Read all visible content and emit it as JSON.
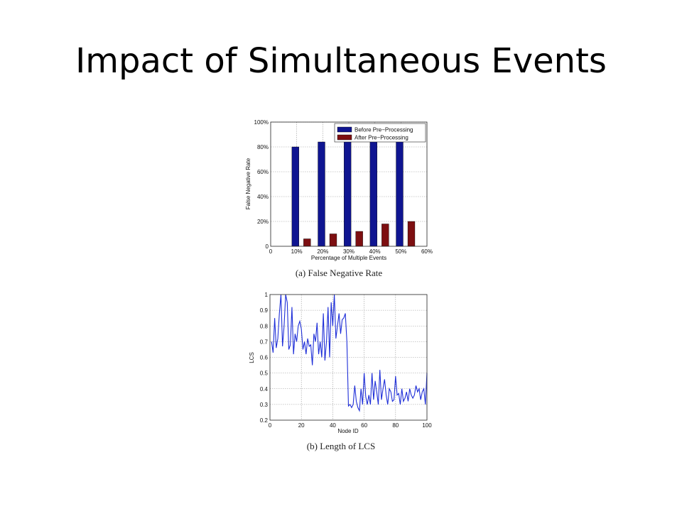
{
  "slide": {
    "title": "Impact of Simultaneous Events"
  },
  "chart_data": [
    {
      "type": "bar",
      "caption": "(a) False Negative Rate",
      "xlabel": "Percentage of Multiple Events",
      "ylabel": "False Negative Rate",
      "categories": [
        "10%",
        "20%",
        "30%",
        "40%",
        "50%"
      ],
      "x": [
        10,
        20,
        30,
        40,
        50
      ],
      "x_ticks": [
        "0",
        "10%",
        "20%",
        "30%",
        "40%",
        "50%",
        "60%"
      ],
      "y_ticks": [
        "0",
        "20%",
        "40%",
        "60%",
        "80%",
        "100%"
      ],
      "xlim": [
        0,
        60
      ],
      "ylim": [
        0,
        100
      ],
      "grid": true,
      "legend_position": "top-right",
      "series": [
        {
          "name": "Before Pre−Processing",
          "color": "#0f1591",
          "values": [
            80,
            84,
            88,
            97,
            97
          ]
        },
        {
          "name": "After Pre−Processing",
          "color": "#7d0f11",
          "values": [
            6,
            10,
            12,
            18,
            20
          ]
        }
      ]
    },
    {
      "type": "line",
      "caption": "(b) Length of LCS",
      "xlabel": "Node ID",
      "ylabel": "LCS",
      "xlim": [
        0,
        100
      ],
      "ylim": [
        0.2,
        1
      ],
      "x_ticks": [
        "0",
        "20",
        "40",
        "60",
        "80",
        "100"
      ],
      "y_ticks": [
        "0.2",
        "0.3",
        "0.4",
        "0.5",
        "0.6",
        "0.7",
        "0.8",
        "0.9",
        "1"
      ],
      "grid": true,
      "series": [
        {
          "color": "#1f2fd8",
          "x": [
            1,
            2,
            3,
            4,
            5,
            6,
            7,
            8,
            9,
            10,
            11,
            12,
            13,
            14,
            15,
            16,
            17,
            18,
            19,
            20,
            21,
            22,
            23,
            24,
            25,
            26,
            27,
            28,
            29,
            30,
            31,
            32,
            33,
            34,
            35,
            36,
            37,
            38,
            39,
            40,
            41,
            42,
            43,
            44,
            45,
            46,
            47,
            48,
            49,
            50,
            51,
            52,
            53,
            54,
            55,
            56,
            57,
            58,
            59,
            60,
            61,
            62,
            63,
            64,
            65,
            66,
            67,
            68,
            69,
            70,
            71,
            72,
            73,
            74,
            75,
            76,
            77,
            78,
            79,
            80,
            81,
            82,
            83,
            84,
            85,
            86,
            87,
            88,
            89,
            90,
            91,
            92,
            93,
            94,
            95,
            96,
            97,
            98,
            99,
            100
          ],
          "y": [
            0.7,
            0.63,
            0.85,
            0.66,
            0.72,
            0.88,
            1.0,
            0.67,
            0.8,
            1.0,
            0.95,
            0.65,
            0.68,
            0.92,
            0.62,
            0.75,
            0.7,
            0.8,
            0.83,
            0.78,
            0.65,
            0.7,
            0.62,
            0.72,
            0.67,
            0.68,
            0.55,
            0.75,
            0.7,
            0.82,
            0.62,
            0.7,
            0.6,
            0.88,
            0.58,
            0.7,
            0.92,
            0.6,
            0.95,
            0.8,
            1.0,
            0.72,
            0.8,
            0.88,
            0.75,
            0.84,
            0.85,
            0.88,
            0.7,
            0.29,
            0.3,
            0.28,
            0.3,
            0.42,
            0.32,
            0.28,
            0.26,
            0.4,
            0.3,
            0.5,
            0.35,
            0.3,
            0.36,
            0.3,
            0.5,
            0.33,
            0.45,
            0.38,
            0.3,
            0.52,
            0.33,
            0.4,
            0.46,
            0.36,
            0.3,
            0.4,
            0.38,
            0.32,
            0.33,
            0.48,
            0.36,
            0.37,
            0.3,
            0.4,
            0.32,
            0.34,
            0.38,
            0.32,
            0.4,
            0.36,
            0.34,
            0.36,
            0.42,
            0.38,
            0.4,
            0.33,
            0.38,
            0.4,
            0.3,
            0.5
          ]
        }
      ]
    }
  ]
}
